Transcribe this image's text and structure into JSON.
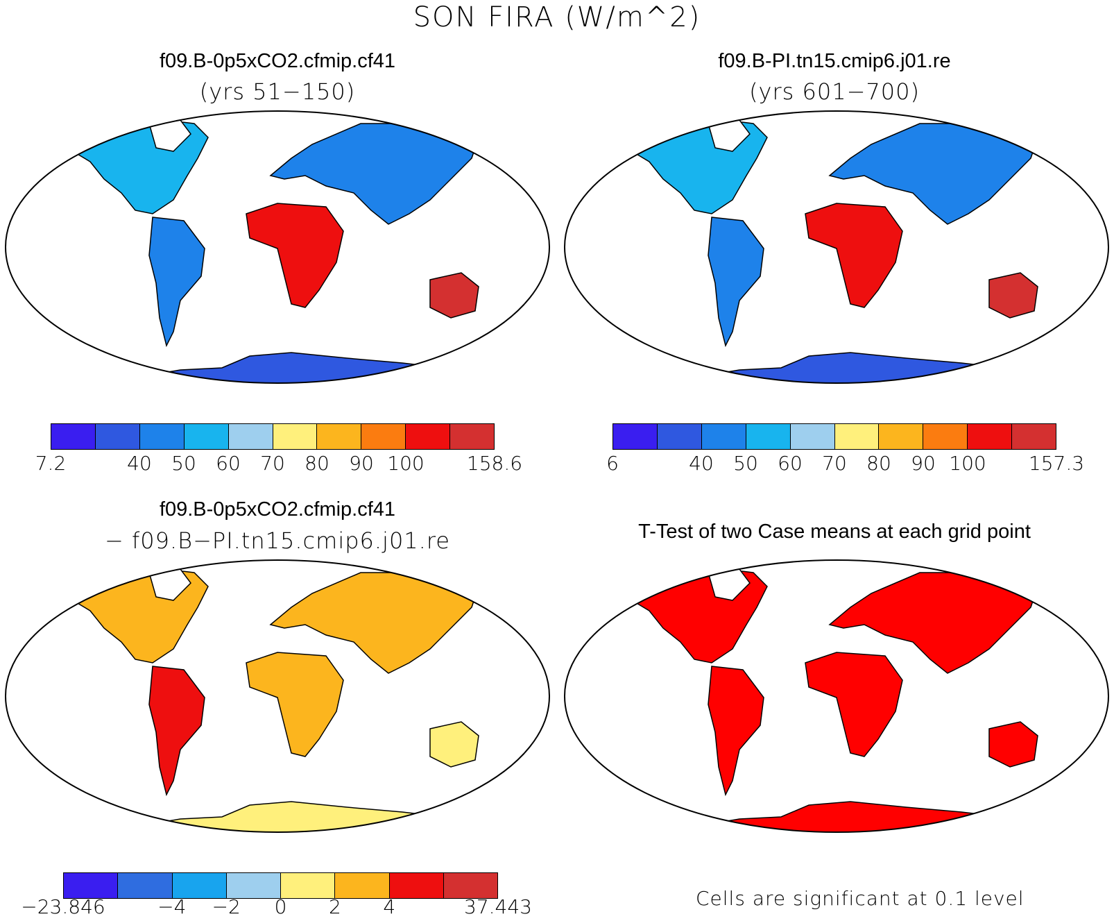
{
  "figure_title": "SON FIRA (W/m^2)",
  "panels": [
    {
      "title": "f09.B-0p5xCO2.cfmip.cf41",
      "subtitle": "(yrs 51−150)",
      "colorbar": {
        "colors": [
          "#3a1ef0",
          "#2f58e0",
          "#1e82ea",
          "#18b4ee",
          "#9ecfee",
          "#fff07c",
          "#fcb51e",
          "#fb7c10",
          "#ee0f0f",
          "#d43030"
        ],
        "labels": [
          "7.2",
          "",
          "40",
          "50",
          "60",
          "70",
          "80",
          "90",
          "100",
          "",
          "158.6"
        ]
      }
    },
    {
      "title": "f09.B-PI.tn15.cmip6.j01.re",
      "subtitle": "(yrs 601−700)",
      "colorbar": {
        "colors": [
          "#3a1ef0",
          "#2f58e0",
          "#1e82ea",
          "#18b4ee",
          "#9ecfee",
          "#fff07c",
          "#fcb51e",
          "#fb7c10",
          "#ee0f0f",
          "#d43030"
        ],
        "labels": [
          "6",
          "",
          "40",
          "50",
          "60",
          "70",
          "80",
          "90",
          "100",
          "",
          "157.3"
        ]
      }
    },
    {
      "title": "f09.B-0p5xCO2.cfmip.cf41",
      "subtitle": "− f09.B−PI.tn15.cmip6.j01.re",
      "colorbar": {
        "colors": [
          "#3a1ef0",
          "#2f6de0",
          "#18a4ee",
          "#9ecfee",
          "#fff07c",
          "#fcb51e",
          "#ee0f0f",
          "#d43030"
        ],
        "labels": [
          "−23.846",
          "",
          "−4",
          "−2",
          "0",
          "2",
          "4",
          "",
          "37.443"
        ]
      }
    },
    {
      "title": "T-Test of two Case means at each grid point",
      "subtitle": "",
      "note": "Cells are significant at 0.1 level",
      "sig_color": "#ff0000"
    }
  ],
  "chart_data": {
    "type": "heatmap",
    "title": "SON FIRA (W/m^2)",
    "maps": [
      {
        "title": "f09.B-0p5xCO2.cfmip.cf41",
        "period": "(yrs 51−150)",
        "colorbar_min": 7.2,
        "colorbar_max": 158.6,
        "levels": [
          40,
          50,
          60,
          70,
          80,
          90,
          100
        ]
      },
      {
        "title": "f09.B-PI.tn15.cmip6.j01.re",
        "period": "(yrs 601−700)",
        "colorbar_min": 6,
        "colorbar_max": 157.3,
        "levels": [
          40,
          50,
          60,
          70,
          80,
          90,
          100
        ]
      },
      {
        "title": "f09.B-0p5xCO2.cfmip.cf41 − f09.B−PI.tn15.cmip6.j01.re",
        "colorbar_min": -23.846,
        "colorbar_max": 37.443,
        "levels": [
          -4,
          -2,
          0,
          2,
          4
        ]
      },
      {
        "title": "T-Test of two Case means at each grid point",
        "note": "Cells are significant at 0.1 level"
      }
    ]
  }
}
